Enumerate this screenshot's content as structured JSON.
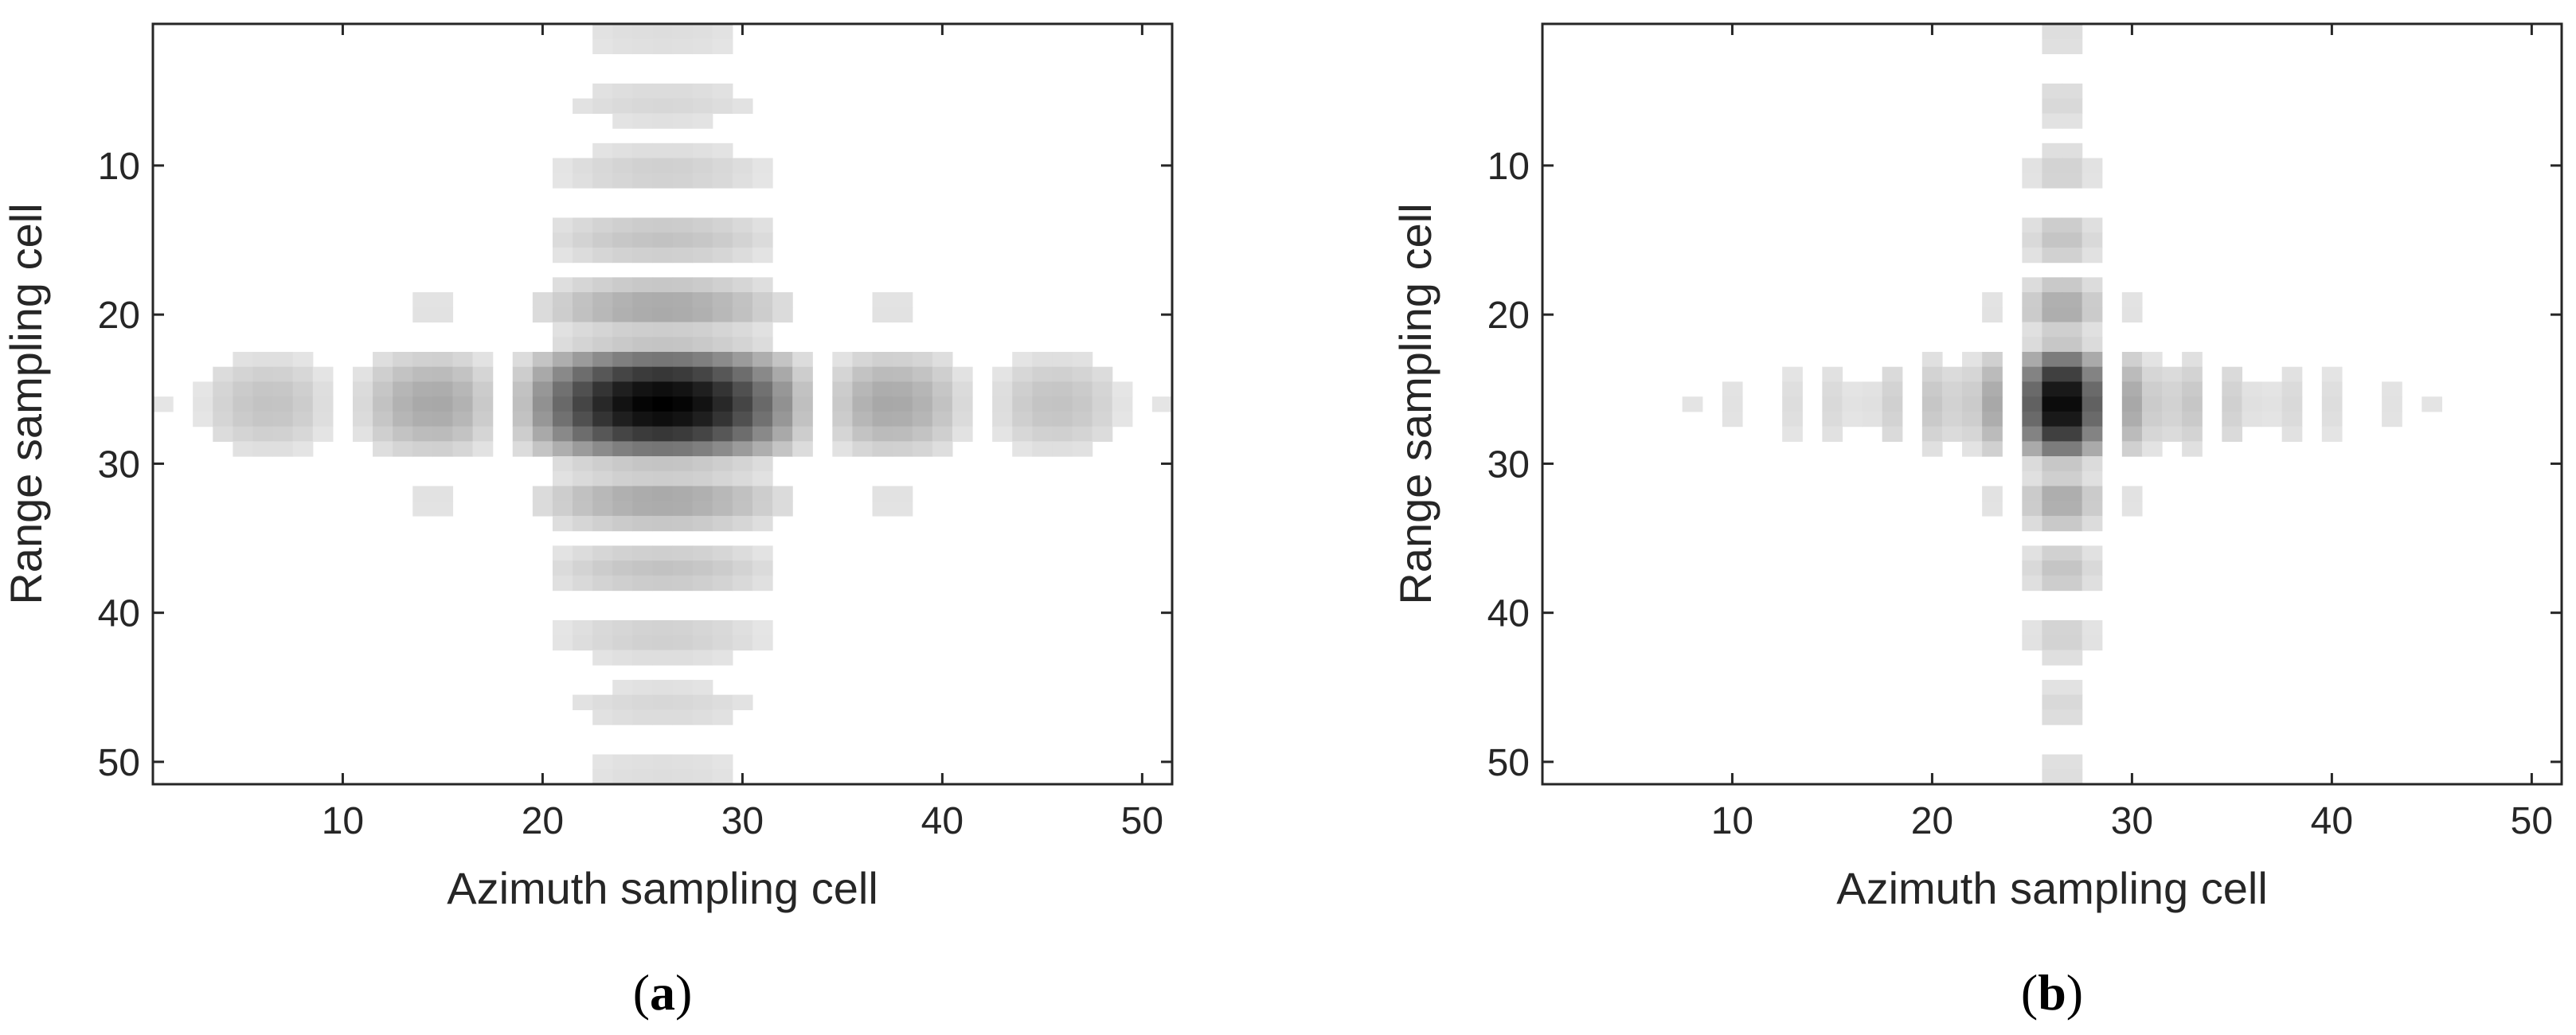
{
  "chart_data": [
    {
      "type": "heatmap",
      "panel_label": "(a)",
      "panel_letter": "a",
      "xlabel": "Azimuth sampling cell",
      "ylabel": "Range sampling cell",
      "xlim": [
        0.5,
        51.5
      ],
      "ylim": [
        0.5,
        51.5
      ],
      "y_reversed": true,
      "xticks": [
        10,
        20,
        30,
        40,
        50
      ],
      "yticks": [
        10,
        20,
        30,
        40,
        50
      ],
      "colormap": "gray (white = low, black = high)",
      "grid": false,
      "legend": "none",
      "mainlobe_center": {
        "azimuth": 26,
        "range": 26
      },
      "azimuth_mainlobe_width_cells": 16,
      "range_mainlobe_width_cells": 9,
      "azimuth_sidelobe_spacing_cells": 17,
      "range_sidelobe_spacing_cells": 9
    },
    {
      "type": "heatmap",
      "panel_label": "(b)",
      "panel_letter": "b",
      "xlabel": "Azimuth sampling cell",
      "ylabel": "Range sampling cell",
      "xlim": [
        0.5,
        51.5
      ],
      "ylim": [
        0.5,
        51.5
      ],
      "y_reversed": true,
      "xticks": [
        10,
        20,
        30,
        40,
        50
      ],
      "yticks": [
        10,
        20,
        30,
        40,
        50
      ],
      "colormap": "gray (white = low, black = high)",
      "grid": false,
      "legend": "none",
      "mainlobe_center": {
        "azimuth": 26.5,
        "range": 26
      },
      "azimuth_mainlobe_width_cells": 5,
      "range_mainlobe_width_cells": 9,
      "azimuth_sidelobe_spacing_cells": 3.6,
      "range_sidelobe_spacing_cells": 9
    }
  ]
}
